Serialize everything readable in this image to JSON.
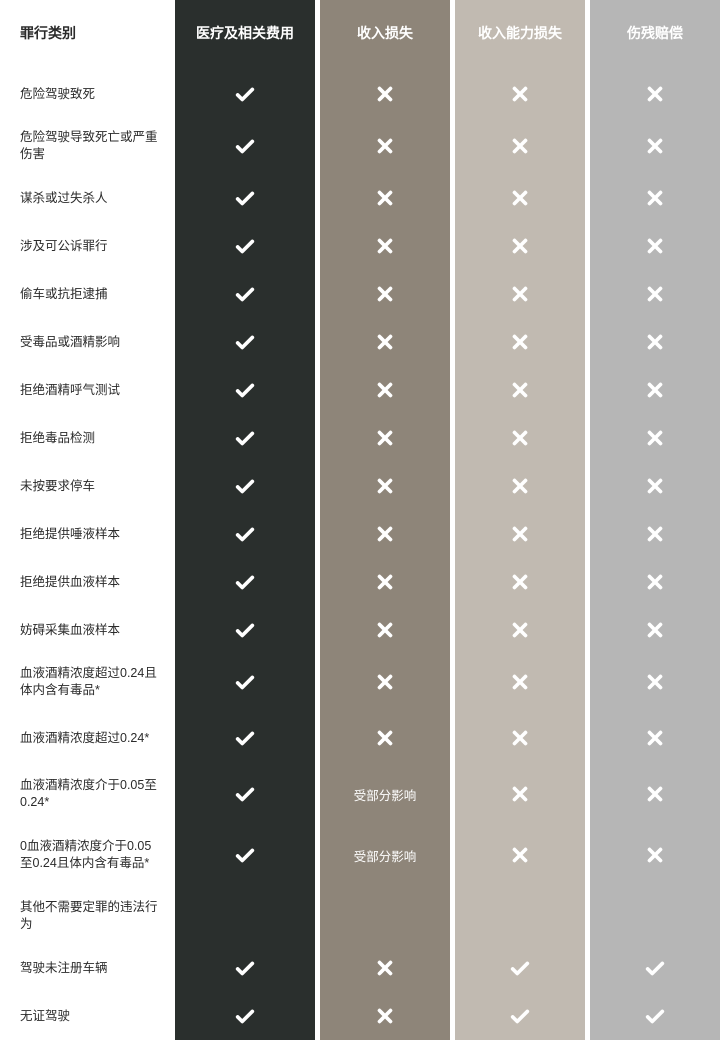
{
  "colors": {
    "col1_bg": "#2a2f2d",
    "col2_bg": "#8e8579",
    "col3_bg": "#c1bab1",
    "col4_bg": "#b6b6b6",
    "label_text": "#2b2b2b",
    "header_text": "#ffffff",
    "check_stroke": "#ffffff",
    "cross_stroke": "#ffffff"
  },
  "headers": {
    "label": "罪行类别",
    "c1": "医疗及相关费用",
    "c2": "收入损失",
    "c3": "收入能力损失",
    "c4": "伤残赔偿"
  },
  "partial_text": "受部分影响",
  "rows": [
    {
      "label": "危险驾驶致死",
      "c1": "check",
      "c2": "cross",
      "c3": "cross",
      "c4": "cross",
      "h": "row-h1"
    },
    {
      "label": "危险驾驶导致死亡或严重伤害",
      "c1": "check",
      "c2": "cross",
      "c3": "cross",
      "c4": "cross",
      "h": "row-h2"
    },
    {
      "label": "谋杀或过失杀人",
      "c1": "check",
      "c2": "cross",
      "c3": "cross",
      "c4": "cross",
      "h": "row-h1"
    },
    {
      "label": "涉及可公诉罪行",
      "c1": "check",
      "c2": "cross",
      "c3": "cross",
      "c4": "cross",
      "h": "row-h1"
    },
    {
      "label": "偷车或抗拒逮捕",
      "c1": "check",
      "c2": "cross",
      "c3": "cross",
      "c4": "cross",
      "h": "row-h1"
    },
    {
      "label": "受毒品或酒精影响",
      "c1": "check",
      "c2": "cross",
      "c3": "cross",
      "c4": "cross",
      "h": "row-h1"
    },
    {
      "label": "拒绝酒精呼气测试",
      "c1": "check",
      "c2": "cross",
      "c3": "cross",
      "c4": "cross",
      "h": "row-h1"
    },
    {
      "label": "拒绝毒品检测",
      "c1": "check",
      "c2": "cross",
      "c3": "cross",
      "c4": "cross",
      "h": "row-h1"
    },
    {
      "label": "未按要求停车",
      "c1": "check",
      "c2": "cross",
      "c3": "cross",
      "c4": "cross",
      "h": "row-h1"
    },
    {
      "label": "拒绝提供唾液样本",
      "c1": "check",
      "c2": "cross",
      "c3": "cross",
      "c4": "cross",
      "h": "row-h1"
    },
    {
      "label": "拒绝提供血液样本",
      "c1": "check",
      "c2": "cross",
      "c3": "cross",
      "c4": "cross",
      "h": "row-h1"
    },
    {
      "label": "妨碍采集血液样本",
      "c1": "check",
      "c2": "cross",
      "c3": "cross",
      "c4": "cross",
      "h": "row-h1"
    },
    {
      "label": "血液酒精浓度超过0.24且体内含有毒品*",
      "c1": "check",
      "c2": "cross",
      "c3": "cross",
      "c4": "cross",
      "h": "row-h2"
    },
    {
      "label": "血液酒精浓度超过0.24*",
      "c1": "check",
      "c2": "cross",
      "c3": "cross",
      "c4": "cross",
      "h": "row-h2"
    },
    {
      "label": "血液酒精浓度介于0.05至0.24*",
      "c1": "check",
      "c2": "partial",
      "c3": "cross",
      "c4": "cross",
      "h": "row-h2"
    },
    {
      "label": "0血液酒精浓度介于0.05至0.24且体内含有毒品*",
      "c1": "check",
      "c2": "partial",
      "c3": "cross",
      "c4": "cross",
      "h": "row-h3"
    },
    {
      "label": "其他不需要定罪的违法行为",
      "c1": "",
      "c2": "",
      "c3": "",
      "c4": "",
      "h": "row-h2"
    },
    {
      "label": "驾驶未注册车辆",
      "c1": "check",
      "c2": "cross",
      "c3": "check",
      "c4": "check",
      "h": "row-h1"
    },
    {
      "label": "无证驾驶",
      "c1": "check",
      "c2": "cross",
      "c3": "check",
      "c4": "check",
      "h": "row-h1"
    }
  ]
}
